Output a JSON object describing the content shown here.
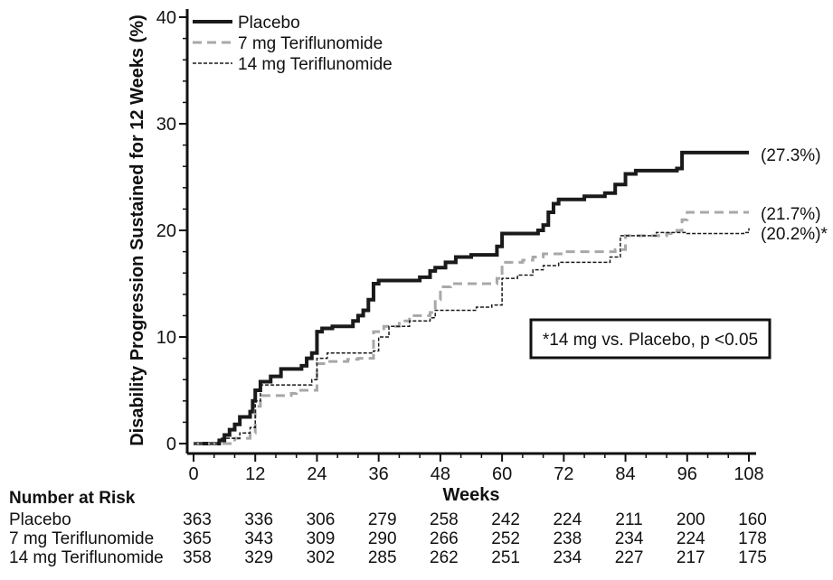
{
  "chart_data": {
    "type": "line",
    "title": "",
    "xlabel": "Weeks",
    "ylabel": "Disability Progression Sustained for 12 Weeks (%)",
    "xlim": [
      0,
      108
    ],
    "ylim": [
      0,
      40
    ],
    "x_ticks": [
      "0",
      "12",
      "24",
      "36",
      "48",
      "60",
      "72",
      "84",
      "96",
      "108"
    ],
    "y_ticks": [
      "0",
      "10",
      "20",
      "30",
      "40"
    ],
    "legend_position": "top-left",
    "note": "*14 mg vs. Placebo, p <0.05",
    "series": [
      {
        "name": "Placebo",
        "style": "solid",
        "color": "#1a1a1a",
        "end_label": "(27.3%)",
        "points": [
          [
            0,
            0
          ],
          [
            3,
            0
          ],
          [
            5,
            0.3
          ],
          [
            6,
            0.8
          ],
          [
            7,
            1.3
          ],
          [
            8,
            1.8
          ],
          [
            9,
            2.5
          ],
          [
            11,
            3
          ],
          [
            11.5,
            4
          ],
          [
            12,
            5
          ],
          [
            13,
            5.8
          ],
          [
            15,
            6.3
          ],
          [
            17,
            7
          ],
          [
            21,
            7.3
          ],
          [
            22,
            8
          ],
          [
            23,
            8.5
          ],
          [
            24,
            10.5
          ],
          [
            25,
            10.8
          ],
          [
            27,
            11
          ],
          [
            31,
            11.5
          ],
          [
            32,
            12
          ],
          [
            33,
            12.5
          ],
          [
            34,
            13.5
          ],
          [
            35,
            15
          ],
          [
            36,
            15.3
          ],
          [
            44,
            15.6
          ],
          [
            46,
            16.2
          ],
          [
            47,
            16.5
          ],
          [
            49,
            17
          ],
          [
            51,
            17.5
          ],
          [
            54,
            17.7
          ],
          [
            59,
            18.5
          ],
          [
            60,
            19.7
          ],
          [
            67,
            20
          ],
          [
            68,
            20.5
          ],
          [
            69,
            21.7
          ],
          [
            70,
            22.5
          ],
          [
            71,
            22.9
          ],
          [
            76,
            23.2
          ],
          [
            80,
            23.5
          ],
          [
            82,
            24.3
          ],
          [
            84,
            25.3
          ],
          [
            86,
            25.6
          ],
          [
            94,
            25.8
          ],
          [
            95,
            27.3
          ],
          [
            108,
            27.3
          ]
        ]
      },
      {
        "name": "7 mg Teriflunomide",
        "style": "dashed",
        "color": "#a8a8a8",
        "end_label": "(21.7%)",
        "points": [
          [
            0,
            0
          ],
          [
            8,
            0.5
          ],
          [
            11,
            1
          ],
          [
            12,
            3.5
          ],
          [
            13,
            4.5
          ],
          [
            19,
            4.7
          ],
          [
            20,
            5
          ],
          [
            24,
            7.5
          ],
          [
            26,
            7.7
          ],
          [
            30,
            7.9
          ],
          [
            32,
            8
          ],
          [
            35,
            10.5
          ],
          [
            37,
            11
          ],
          [
            40,
            11.5
          ],
          [
            42,
            12
          ],
          [
            46,
            12.3
          ],
          [
            47,
            13.5
          ],
          [
            48,
            14.7
          ],
          [
            50,
            15
          ],
          [
            59,
            15.5
          ],
          [
            60,
            17
          ],
          [
            64,
            17.2
          ],
          [
            66,
            17.5
          ],
          [
            68,
            17.8
          ],
          [
            72,
            18
          ],
          [
            82,
            18.2
          ],
          [
            84,
            19.5
          ],
          [
            92,
            19.7
          ],
          [
            94,
            20
          ],
          [
            95,
            21
          ],
          [
            96,
            21.7
          ],
          [
            108,
            21.7
          ]
        ]
      },
      {
        "name": "14 mg Teriflunomide",
        "style": "dotted",
        "color": "#1a1a1a",
        "end_label": "(20.2%)*",
        "points": [
          [
            0,
            0
          ],
          [
            5,
            0.5
          ],
          [
            9,
            1
          ],
          [
            11,
            1.5
          ],
          [
            12,
            4
          ],
          [
            13,
            5.5
          ],
          [
            23,
            6
          ],
          [
            24,
            8
          ],
          [
            26,
            8.5
          ],
          [
            35,
            8.7
          ],
          [
            36,
            10
          ],
          [
            38,
            11
          ],
          [
            42,
            11.5
          ],
          [
            46,
            11.8
          ],
          [
            47,
            12.5
          ],
          [
            55,
            12.8
          ],
          [
            58,
            13
          ],
          [
            60,
            15.5
          ],
          [
            63,
            15.8
          ],
          [
            66,
            16.3
          ],
          [
            68,
            16.7
          ],
          [
            71,
            17
          ],
          [
            81,
            17.5
          ],
          [
            83,
            19.5
          ],
          [
            90,
            19.8
          ],
          [
            96,
            19.7
          ],
          [
            107,
            19.8
          ],
          [
            108,
            20.2
          ]
        ]
      }
    ]
  },
  "risk_table": {
    "title": "Number at Risk",
    "rows": [
      {
        "label": "Placebo",
        "values": [
          "363",
          "336",
          "306",
          "279",
          "258",
          "242",
          "224",
          "211",
          "200",
          "160"
        ]
      },
      {
        "label": "7 mg Teriflunomide",
        "values": [
          "365",
          "343",
          "309",
          "290",
          "266",
          "252",
          "238",
          "234",
          "224",
          "178"
        ]
      },
      {
        "label": "14 mg Teriflunomide",
        "values": [
          "358",
          "329",
          "302",
          "285",
          "262",
          "251",
          "234",
          "227",
          "217",
          "175"
        ]
      }
    ]
  }
}
